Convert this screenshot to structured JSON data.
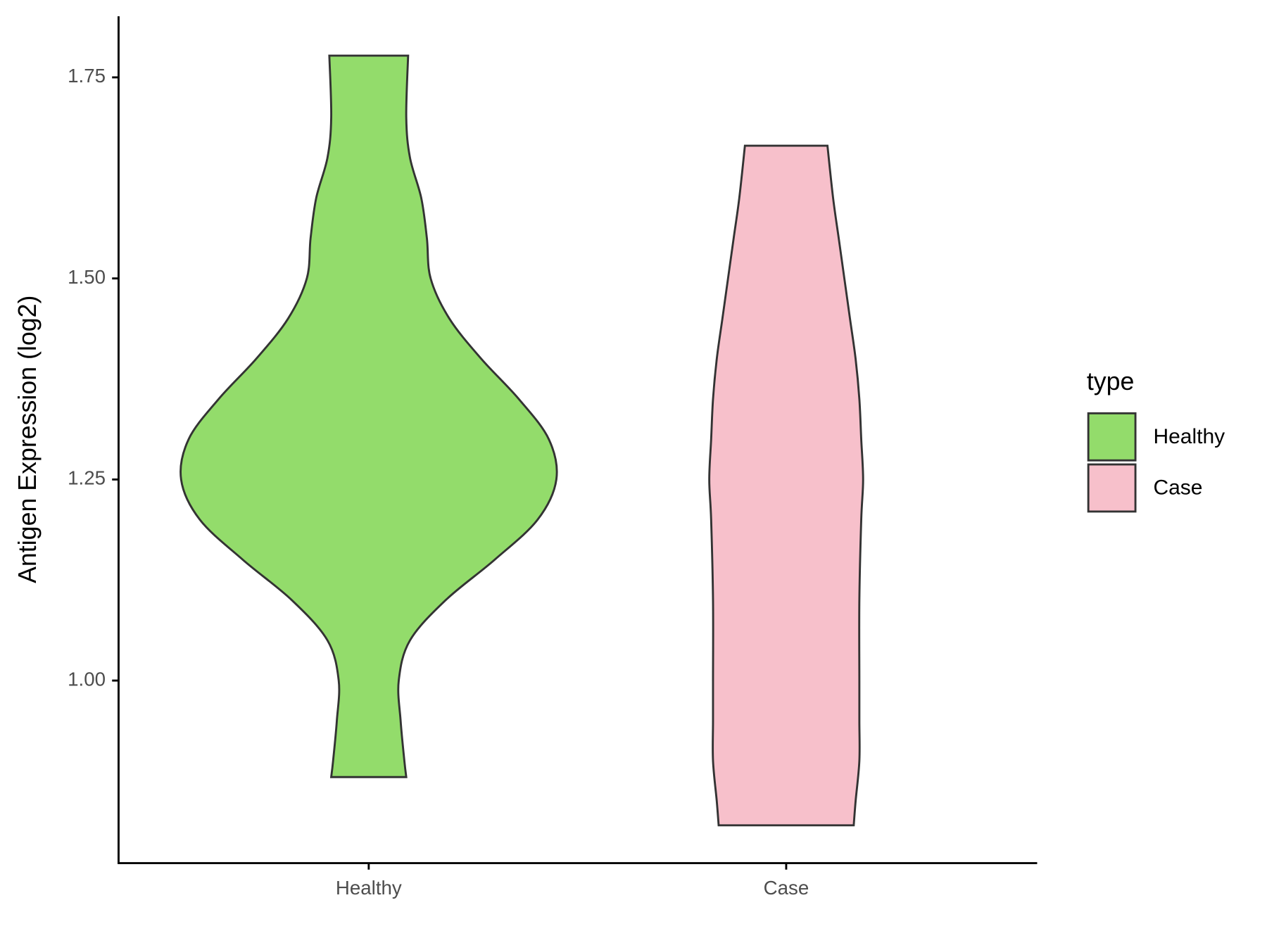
{
  "chart_data": {
    "type": "violin",
    "y_label": "Antigen Expression (log2)",
    "legend_title": "type",
    "categories": [
      "Healthy",
      "Case"
    ],
    "ylim": [
      0.773,
      1.826
    ],
    "yticks": [
      {
        "value": 1,
        "label": "1.00"
      },
      1.25,
      {
        "value": 1.5,
        "label": "1.50"
      },
      1.75
    ],
    "series": [
      {
        "name": "Healthy",
        "color": "#93dc6b",
        "y": [
          1.777,
          1.7,
          1.65,
          1.6,
          1.55,
          1.5,
          1.45,
          1.4,
          1.35,
          1.3,
          1.25,
          1.2,
          1.15,
          1.1,
          1.05,
          1.0,
          0.95,
          0.9,
          0.88
        ],
        "density": [
          0.21,
          0.2,
          0.22,
          0.28,
          0.31,
          0.33,
          0.43,
          0.6,
          0.8,
          0.96,
          1.0,
          0.9,
          0.67,
          0.41,
          0.22,
          0.16,
          0.17,
          0.19,
          0.2
        ]
      },
      {
        "name": "Case",
        "color": "#f7c0cb",
        "y": [
          1.665,
          1.6,
          1.55,
          1.5,
          1.45,
          1.4,
          1.35,
          1.3,
          1.25,
          1.2,
          1.1,
          1.0,
          0.95,
          0.9,
          0.85,
          0.82
        ],
        "density": [
          0.22,
          0.25,
          0.28,
          0.31,
          0.34,
          0.37,
          0.39,
          0.4,
          0.41,
          0.4,
          0.39,
          0.39,
          0.39,
          0.39,
          0.37,
          0.36
        ]
      }
    ]
  }
}
